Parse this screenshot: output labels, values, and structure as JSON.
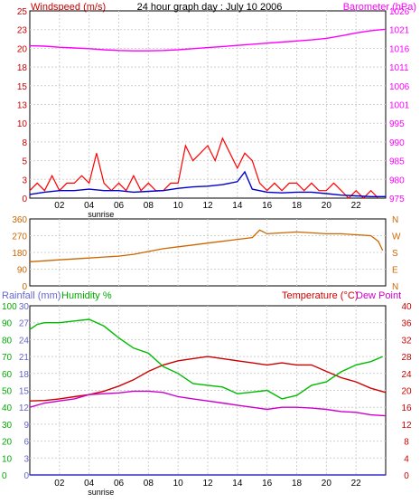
{
  "chart_data": [
    {
      "type": "line",
      "title": "24 hour graph day : July 10 2006",
      "ylabel_left": "Windspeed (m/s)",
      "ylabel_right": "Barometer (hPa)",
      "x_ticks": [
        "02",
        "04",
        "06",
        "08",
        "10",
        "12",
        "14",
        "16",
        "18",
        "20",
        "22"
      ],
      "sunrise_label": "sunrise",
      "sunrise_hour": 4.8,
      "left_ticks": [
        0,
        3,
        5,
        8,
        10,
        13,
        15,
        18,
        20,
        23,
        25
      ],
      "ylim_left": [
        0,
        25
      ],
      "right_ticks": [
        975,
        980,
        985,
        990,
        995,
        1001,
        1006,
        1011,
        1016,
        1021,
        1026
      ],
      "ylim_right": [
        975,
        1026
      ],
      "grid": true,
      "colors": {
        "windspeed": "#ff0000",
        "average_wind": "#0000cc",
        "barometer": "#ff00ff",
        "left_axis": "#cc0000",
        "right_axis": "#ff00ff"
      },
      "series": [
        {
          "name": "Barometer",
          "axis": "right",
          "x": [
            0,
            1,
            2,
            3,
            4,
            5,
            6,
            7,
            8,
            9,
            10,
            11,
            12,
            13,
            14,
            15,
            16,
            17,
            18,
            19,
            20,
            21,
            22,
            23,
            24
          ],
          "values": [
            1016.5,
            1016.4,
            1016.1,
            1015.9,
            1015.7,
            1015.4,
            1015.2,
            1015.1,
            1015.1,
            1015.2,
            1015.4,
            1015.7,
            1016.0,
            1016.3,
            1016.6,
            1016.9,
            1017.2,
            1017.5,
            1017.8,
            1018.1,
            1018.5,
            1019.2,
            1020.0,
            1020.6,
            1021.0
          ]
        },
        {
          "name": "Windspeed",
          "axis": "left",
          "x": [
            0,
            0.5,
            1,
            1.5,
            2,
            2.5,
            3,
            3.5,
            4,
            4.5,
            5,
            5.5,
            6,
            6.5,
            7,
            7.5,
            8,
            8.5,
            9,
            9.5,
            10,
            10.5,
            11,
            11.5,
            12,
            12.5,
            13,
            13.5,
            14,
            14.5,
            15,
            15.5,
            16,
            16.5,
            17,
            17.5,
            18,
            18.5,
            19,
            19.5,
            20,
            20.5,
            21,
            21.5,
            22,
            22.5,
            23,
            23.5
          ],
          "values": [
            1,
            2,
            1,
            3,
            1,
            2,
            2,
            3,
            2,
            6,
            2,
            1,
            2,
            1,
            3,
            1,
            2,
            1,
            1,
            2,
            2,
            7,
            5,
            6,
            7,
            5,
            8,
            6,
            4,
            6,
            5,
            2,
            1,
            2,
            1,
            2,
            2,
            1,
            2,
            1,
            1,
            2,
            1,
            0,
            1,
            0,
            1,
            0
          ]
        },
        {
          "name": "Average wind",
          "axis": "left",
          "x": [
            0,
            1,
            2,
            3,
            4,
            5,
            6,
            7,
            8,
            9,
            10,
            11,
            12,
            13,
            14,
            14.5,
            15,
            16,
            17,
            18,
            19,
            20,
            21,
            22,
            23,
            24
          ],
          "values": [
            0.5,
            0.8,
            1,
            1,
            1.2,
            1,
            1,
            0.8,
            0.9,
            1,
            1.3,
            1.5,
            1.6,
            1.8,
            2.2,
            3.5,
            1.2,
            0.8,
            0.7,
            0.8,
            0.8,
            0.6,
            0.4,
            0.3,
            0.2,
            0.2
          ]
        }
      ]
    },
    {
      "type": "line",
      "ylabel_right_directions": [
        "N",
        "W",
        "S",
        "E",
        "N"
      ],
      "left_ticks": [
        0,
        90,
        180,
        270,
        360
      ],
      "ylim": [
        0,
        360
      ],
      "x_ticks": [
        "02",
        "04",
        "06",
        "08",
        "10",
        "12",
        "14",
        "16",
        "18",
        "20",
        "22"
      ],
      "grid": true,
      "colors": {
        "direction": "#cc6600",
        "axis": "#cc6600"
      },
      "series": [
        {
          "name": "Wind direction",
          "x": [
            0,
            1,
            2,
            3,
            4,
            5,
            6,
            7,
            8,
            9,
            10,
            11,
            12,
            13,
            14,
            15,
            15.5,
            16,
            17,
            18,
            19,
            20,
            21,
            22,
            23,
            23.5,
            23.8
          ],
          "values": [
            130,
            135,
            140,
            145,
            150,
            155,
            160,
            170,
            185,
            200,
            210,
            220,
            230,
            240,
            250,
            260,
            300,
            280,
            285,
            290,
            285,
            280,
            280,
            275,
            270,
            240,
            190
          ]
        }
      ]
    },
    {
      "type": "line",
      "ylabel_left_rain": "Rainfall (mm)",
      "ylabel_left_humidity": "Humidity %",
      "ylabel_right_temp": "Temperature (°C)",
      "ylabel_right_dew": "Dew Point",
      "humidity_ticks": [
        0,
        10,
        20,
        30,
        40,
        50,
        60,
        70,
        80,
        90,
        100
      ],
      "rain_ticks": [
        0,
        3,
        6,
        9,
        12,
        15,
        18,
        21,
        24,
        27,
        30
      ],
      "temp_ticks": [
        0,
        4,
        8,
        12,
        16,
        20,
        24,
        28,
        32,
        36,
        40
      ],
      "ylim_temp": [
        0,
        40
      ],
      "ylim_humidity": [
        0,
        100
      ],
      "x_ticks": [
        "02",
        "04",
        "06",
        "08",
        "10",
        "12",
        "14",
        "16",
        "18",
        "20",
        "22"
      ],
      "sunrise_label": "sunrise",
      "grid": true,
      "colors": {
        "temperature": "#cc0000",
        "dew_point": "#cc00cc",
        "humidity": "#00bb00",
        "rainfall": "#3333cc",
        "rain_axis": "#6666cc",
        "humidity_axis": "#00aa00",
        "temp_axis": "#cc0000"
      },
      "series": [
        {
          "name": "Temperature",
          "axis": "temp",
          "x": [
            0,
            1,
            2,
            3,
            4,
            5,
            6,
            7,
            8,
            9,
            10,
            11,
            12,
            13,
            14,
            15,
            16,
            17,
            18,
            19,
            20,
            21,
            22,
            23,
            24
          ],
          "values": [
            17.5,
            17.6,
            18,
            18.5,
            19,
            19.8,
            21,
            22.5,
            24.5,
            26,
            27,
            27.5,
            28,
            27.5,
            27,
            26.5,
            26,
            26.5,
            26,
            26,
            24.5,
            23,
            22,
            20.5,
            19.5
          ]
        },
        {
          "name": "Dew Point",
          "axis": "temp",
          "x": [
            0,
            1,
            2,
            3,
            4,
            5,
            6,
            7,
            8,
            9,
            10,
            11,
            12,
            13,
            14,
            15,
            16,
            17,
            18,
            19,
            20,
            21,
            22,
            23,
            24
          ],
          "values": [
            16,
            17,
            17.5,
            18,
            19,
            19.2,
            19.4,
            19.8,
            19.8,
            19.5,
            18.5,
            18,
            17.5,
            17,
            16.5,
            16,
            15.5,
            16,
            16,
            15.8,
            15.5,
            15,
            14.8,
            14.2,
            14
          ]
        },
        {
          "name": "Humidity",
          "axis": "humidity",
          "x": [
            0,
            0.5,
            1,
            2,
            3,
            4,
            5,
            6,
            7,
            8,
            9,
            10,
            11,
            12,
            13,
            14,
            15,
            16,
            17,
            18,
            19,
            20,
            21,
            22,
            23,
            23.8
          ],
          "values": [
            86,
            89,
            90,
            90,
            91,
            92,
            88,
            81,
            75,
            72,
            64,
            60,
            54,
            53,
            52,
            48,
            49,
            50,
            45,
            47,
            53,
            55,
            61,
            65,
            67,
            70
          ]
        },
        {
          "name": "Rainfall",
          "axis": "rain",
          "x": [
            0,
            24
          ],
          "values": [
            0,
            0
          ]
        }
      ]
    }
  ]
}
